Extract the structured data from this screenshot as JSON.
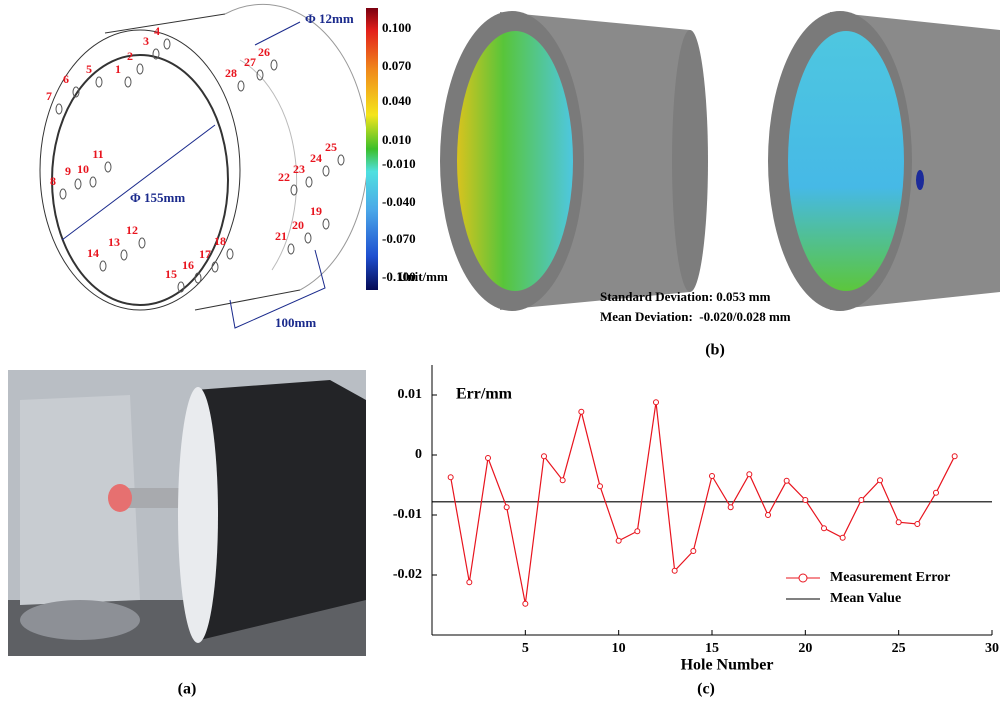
{
  "diagram": {
    "hole_labels": [
      "1",
      "2",
      "3",
      "4",
      "5",
      "6",
      "7",
      "8",
      "9",
      "10",
      "11",
      "12",
      "13",
      "14",
      "15",
      "16",
      "17",
      "18",
      "19",
      "20",
      "21",
      "22",
      "23",
      "24",
      "25",
      "26",
      "27",
      "28"
    ],
    "hole_diameter": "Φ 12mm",
    "inner_diameter": "Φ 155mm",
    "length": "100mm"
  },
  "colorbar": {
    "labels": [
      "0.100",
      "0.070",
      "0.040",
      "0.010",
      "-0.010",
      "-0.040",
      "-0.070",
      "-0.100"
    ],
    "unit": "Unit/mm"
  },
  "panel_b": {
    "stats": [
      "Standard Deviation: 0.053 mm",
      "Mean Deviation:  -0.020/0.028 mm"
    ],
    "label": "(b)"
  },
  "panel_a": {
    "label": "(a)"
  },
  "chart_data": {
    "type": "line",
    "label": "(c)",
    "ylabel": "Err/mm",
    "xlabel": "Hole Number",
    "x": [
      1,
      2,
      3,
      4,
      5,
      6,
      7,
      8,
      9,
      10,
      11,
      12,
      13,
      14,
      15,
      16,
      17,
      18,
      19,
      20,
      21,
      22,
      23,
      24,
      25,
      26,
      27,
      28
    ],
    "series": [
      {
        "name": "Measurement Error",
        "color": "#e8141e",
        "values": [
          -0.0037,
          -0.0212,
          -0.0005,
          -0.0087,
          -0.0248,
          -0.0002,
          -0.0042,
          0.0072,
          -0.0052,
          -0.0143,
          -0.0127,
          0.0088,
          -0.0193,
          -0.016,
          -0.0035,
          -0.0087,
          -0.0032,
          -0.01,
          -0.0043,
          -0.0075,
          -0.0122,
          -0.0138,
          -0.0075,
          -0.0042,
          -0.0112,
          -0.0115,
          -0.0063,
          -0.0002
        ]
      },
      {
        "name": "Mean Value",
        "color": "#000000",
        "value": -0.0078
      }
    ],
    "xlim": [
      0,
      30
    ],
    "ylim": [
      -0.03,
      0.015
    ],
    "xticks": [
      5,
      10,
      15,
      20,
      25,
      30
    ],
    "yticks": [
      0.01,
      0,
      -0.01,
      -0.02
    ]
  }
}
